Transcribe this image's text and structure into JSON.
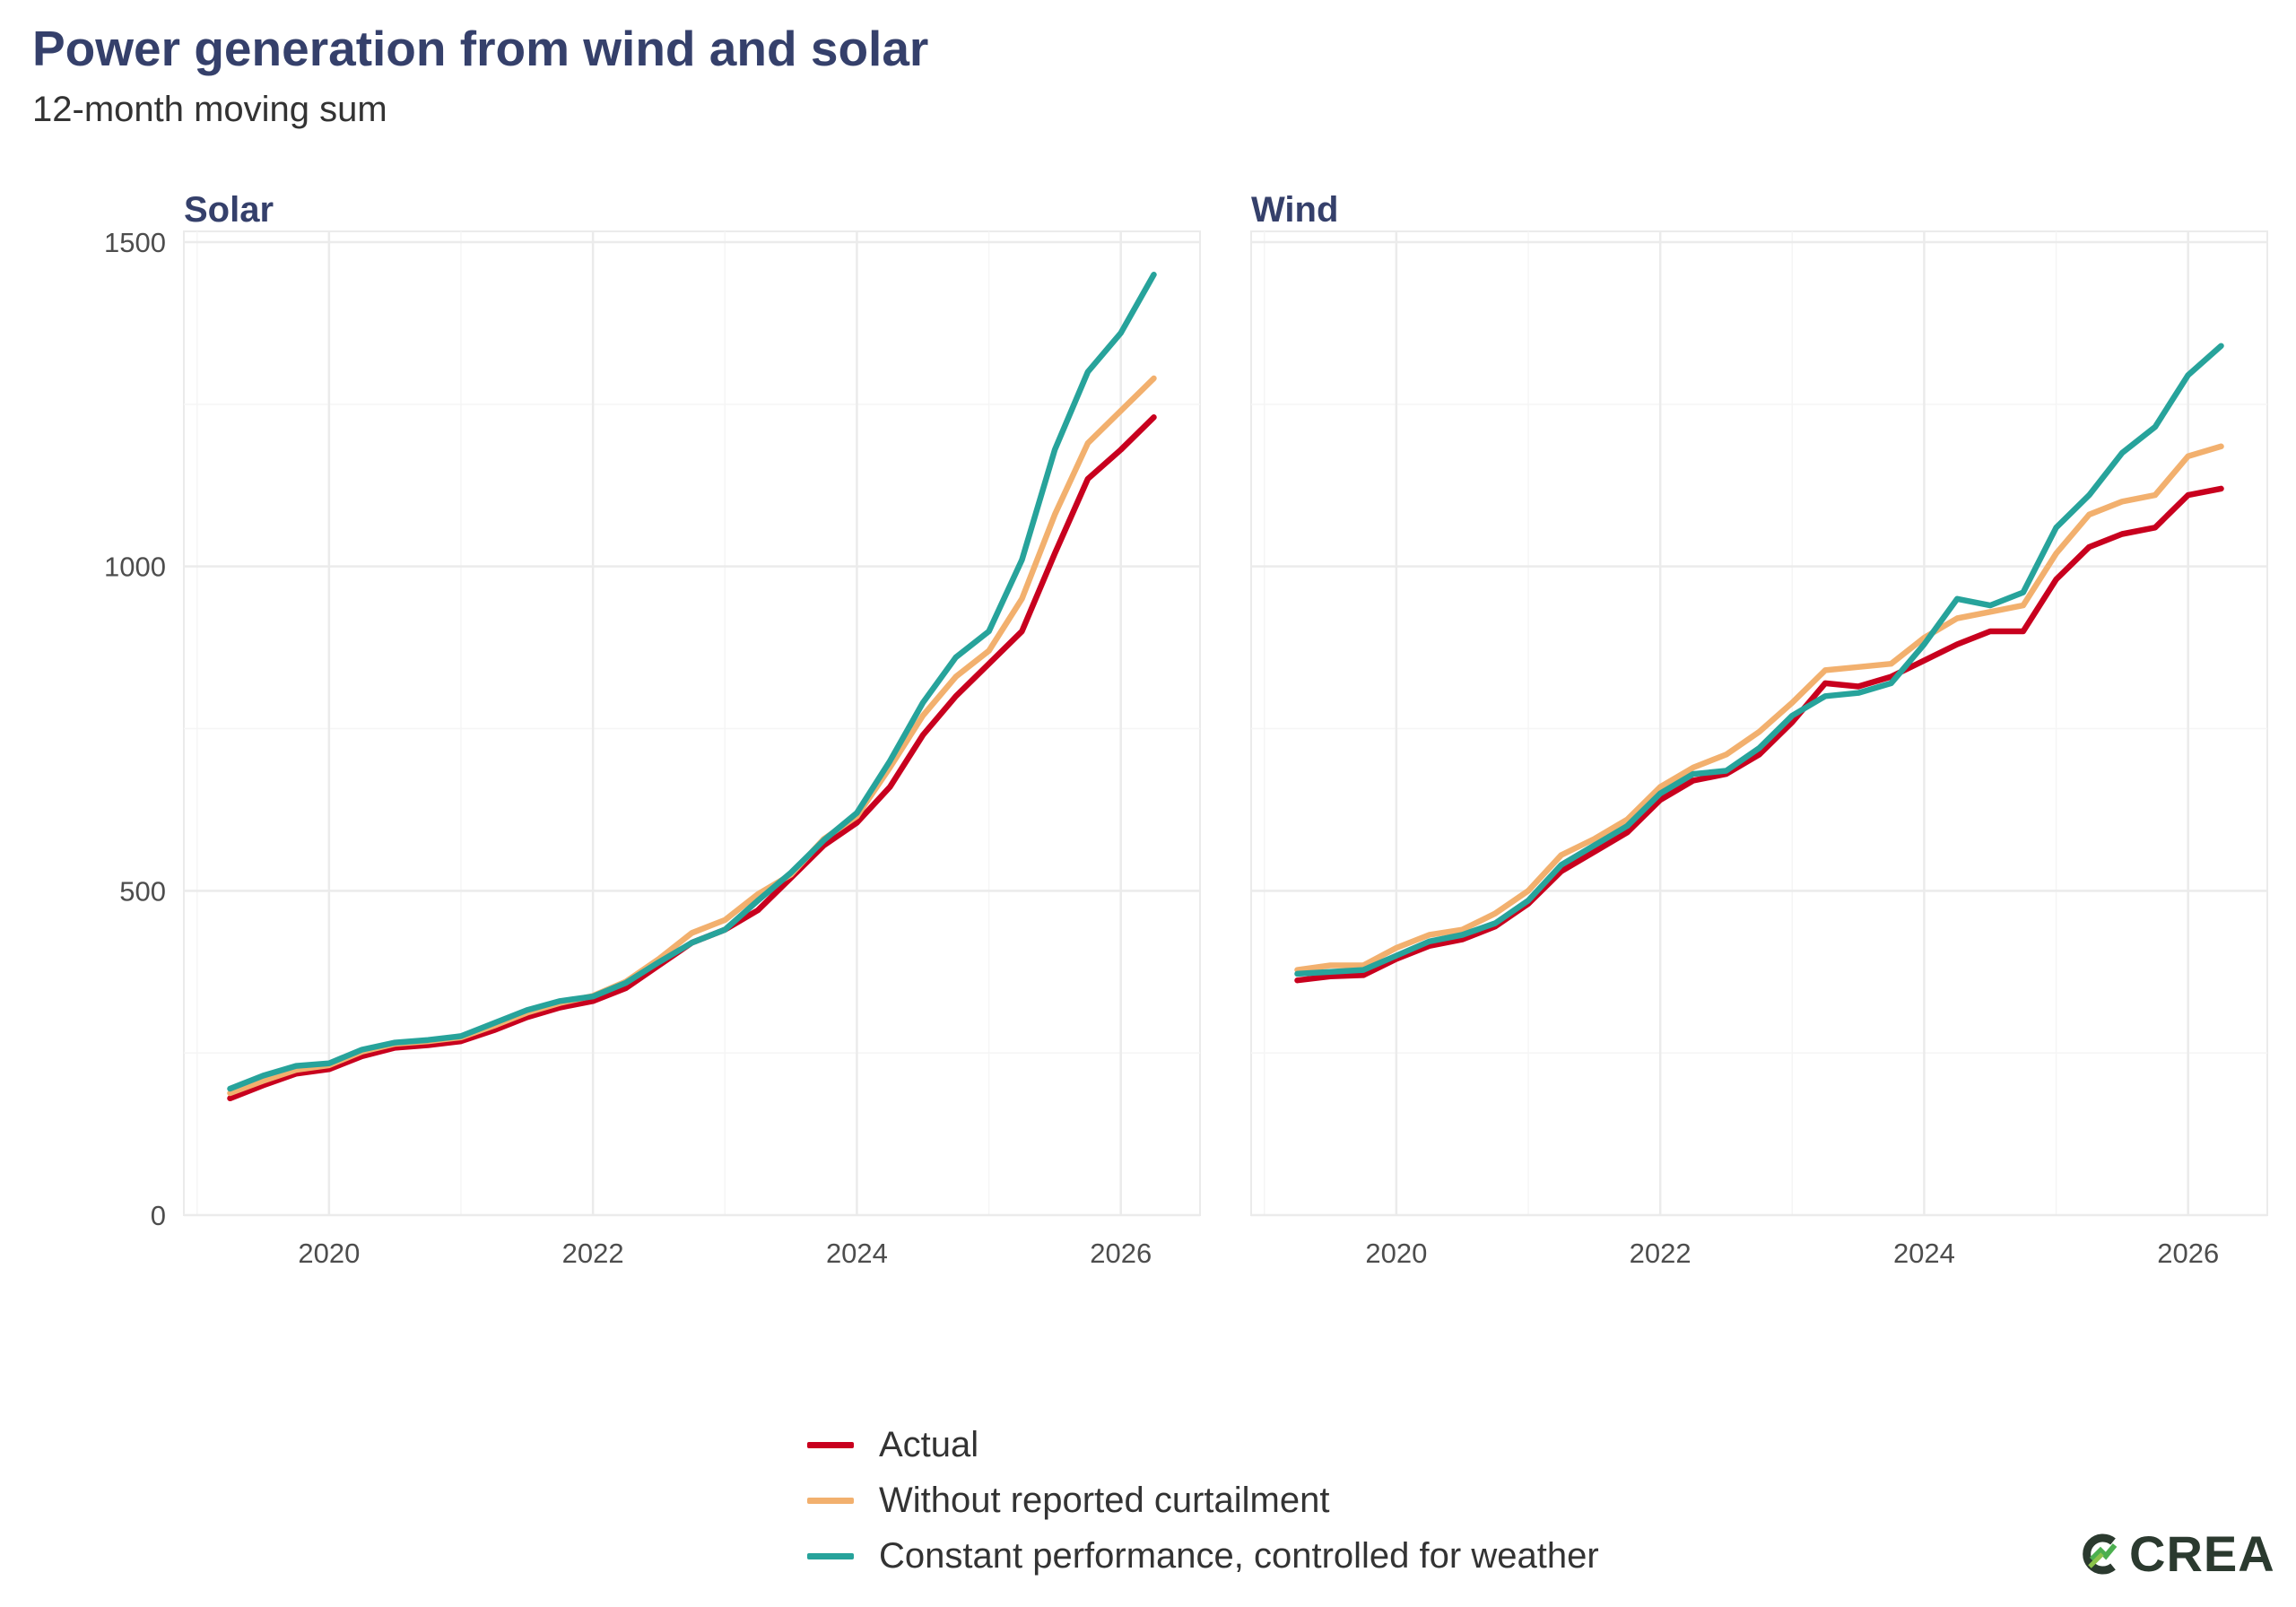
{
  "header": {
    "title": "Power generation from wind and solar",
    "subtitle": "12-month moving sum"
  },
  "colors": {
    "actual": "#c8001e",
    "curtailment": "#f2b06e",
    "constant": "#27a39b",
    "grid": "#ebebeb",
    "facet_title": "#35406b"
  },
  "legend": {
    "items": [
      {
        "label": "Actual",
        "color": "#c8001e"
      },
      {
        "label": "Without reported curtailment",
        "color": "#f2b06e"
      },
      {
        "label": "Constant performance, controlled for weather",
        "color": "#27a39b"
      }
    ]
  },
  "logo": {
    "text": "CREA",
    "icon": "crea-logo-icon"
  },
  "chart_data": [
    {
      "type": "line",
      "title": "Solar",
      "xlabel": "",
      "ylabel": "",
      "xlim": [
        2018.9,
        2026.6
      ],
      "ylim": [
        0,
        1500
      ],
      "x_ticks": [
        2020,
        2022,
        2024,
        2026
      ],
      "y_ticks": [
        0,
        500,
        1000,
        1500
      ],
      "grid": true,
      "x": [
        2019.25,
        2019.5,
        2019.75,
        2020.0,
        2020.25,
        2020.5,
        2020.75,
        2021.0,
        2021.25,
        2021.5,
        2021.75,
        2022.0,
        2022.25,
        2022.5,
        2022.75,
        2023.0,
        2023.25,
        2023.5,
        2023.75,
        2024.0,
        2024.25,
        2024.5,
        2024.75,
        2025.0,
        2025.25,
        2025.5,
        2025.75,
        2026.0,
        2026.25
      ],
      "series": [
        {
          "name": "Actual",
          "values": [
            180,
            200,
            218,
            225,
            245,
            258,
            262,
            268,
            285,
            305,
            320,
            330,
            350,
            385,
            420,
            440,
            470,
            520,
            570,
            605,
            660,
            740,
            800,
            850,
            900,
            1020,
            1135,
            1180,
            1230
          ]
        },
        {
          "name": "Without reported curtailment",
          "values": [
            188,
            207,
            224,
            231,
            252,
            264,
            268,
            274,
            292,
            312,
            327,
            338,
            360,
            395,
            435,
            455,
            495,
            525,
            580,
            615,
            690,
            770,
            830,
            870,
            950,
            1080,
            1190,
            1240,
            1290
          ]
        },
        {
          "name": "Constant performance, controlled for weather",
          "values": [
            195,
            215,
            230,
            234,
            255,
            266,
            270,
            276,
            296,
            316,
            330,
            337,
            358,
            390,
            420,
            440,
            485,
            528,
            578,
            620,
            700,
            790,
            860,
            900,
            1010,
            1180,
            1300,
            1360,
            1450
          ]
        }
      ]
    },
    {
      "type": "line",
      "title": "Wind",
      "xlabel": "",
      "ylabel": "",
      "xlim": [
        2018.9,
        2026.6
      ],
      "ylim": [
        0,
        1500
      ],
      "x_ticks": [
        2020,
        2022,
        2024,
        2026
      ],
      "y_ticks": [
        0,
        500,
        1000,
        1500
      ],
      "grid": true,
      "x": [
        2019.25,
        2019.5,
        2019.75,
        2020.0,
        2020.25,
        2020.5,
        2020.75,
        2021.0,
        2021.25,
        2021.5,
        2021.75,
        2022.0,
        2022.25,
        2022.5,
        2022.75,
        2023.0,
        2023.25,
        2023.5,
        2023.75,
        2024.0,
        2024.25,
        2024.5,
        2024.75,
        2025.0,
        2025.25,
        2025.5,
        2025.75,
        2026.0,
        2026.25
      ],
      "series": [
        {
          "name": "Actual",
          "values": [
            362,
            368,
            370,
            395,
            415,
            425,
            445,
            480,
            530,
            560,
            590,
            640,
            670,
            680,
            710,
            760,
            820,
            815,
            830,
            855,
            880,
            900,
            900,
            980,
            1030,
            1050,
            1060,
            1110,
            1120
          ]
        },
        {
          "name": "Without reported curtailment",
          "values": [
            378,
            385,
            385,
            412,
            432,
            440,
            465,
            500,
            555,
            580,
            610,
            660,
            690,
            710,
            745,
            790,
            840,
            845,
            850,
            890,
            920,
            930,
            940,
            1020,
            1080,
            1100,
            1110,
            1170,
            1185
          ]
        },
        {
          "name": "Constant performance, controlled for weather",
          "values": [
            372,
            375,
            378,
            400,
            422,
            432,
            450,
            485,
            540,
            570,
            600,
            650,
            680,
            685,
            720,
            770,
            800,
            805,
            820,
            880,
            950,
            940,
            960,
            1060,
            1110,
            1175,
            1215,
            1295,
            1340
          ]
        }
      ]
    }
  ]
}
